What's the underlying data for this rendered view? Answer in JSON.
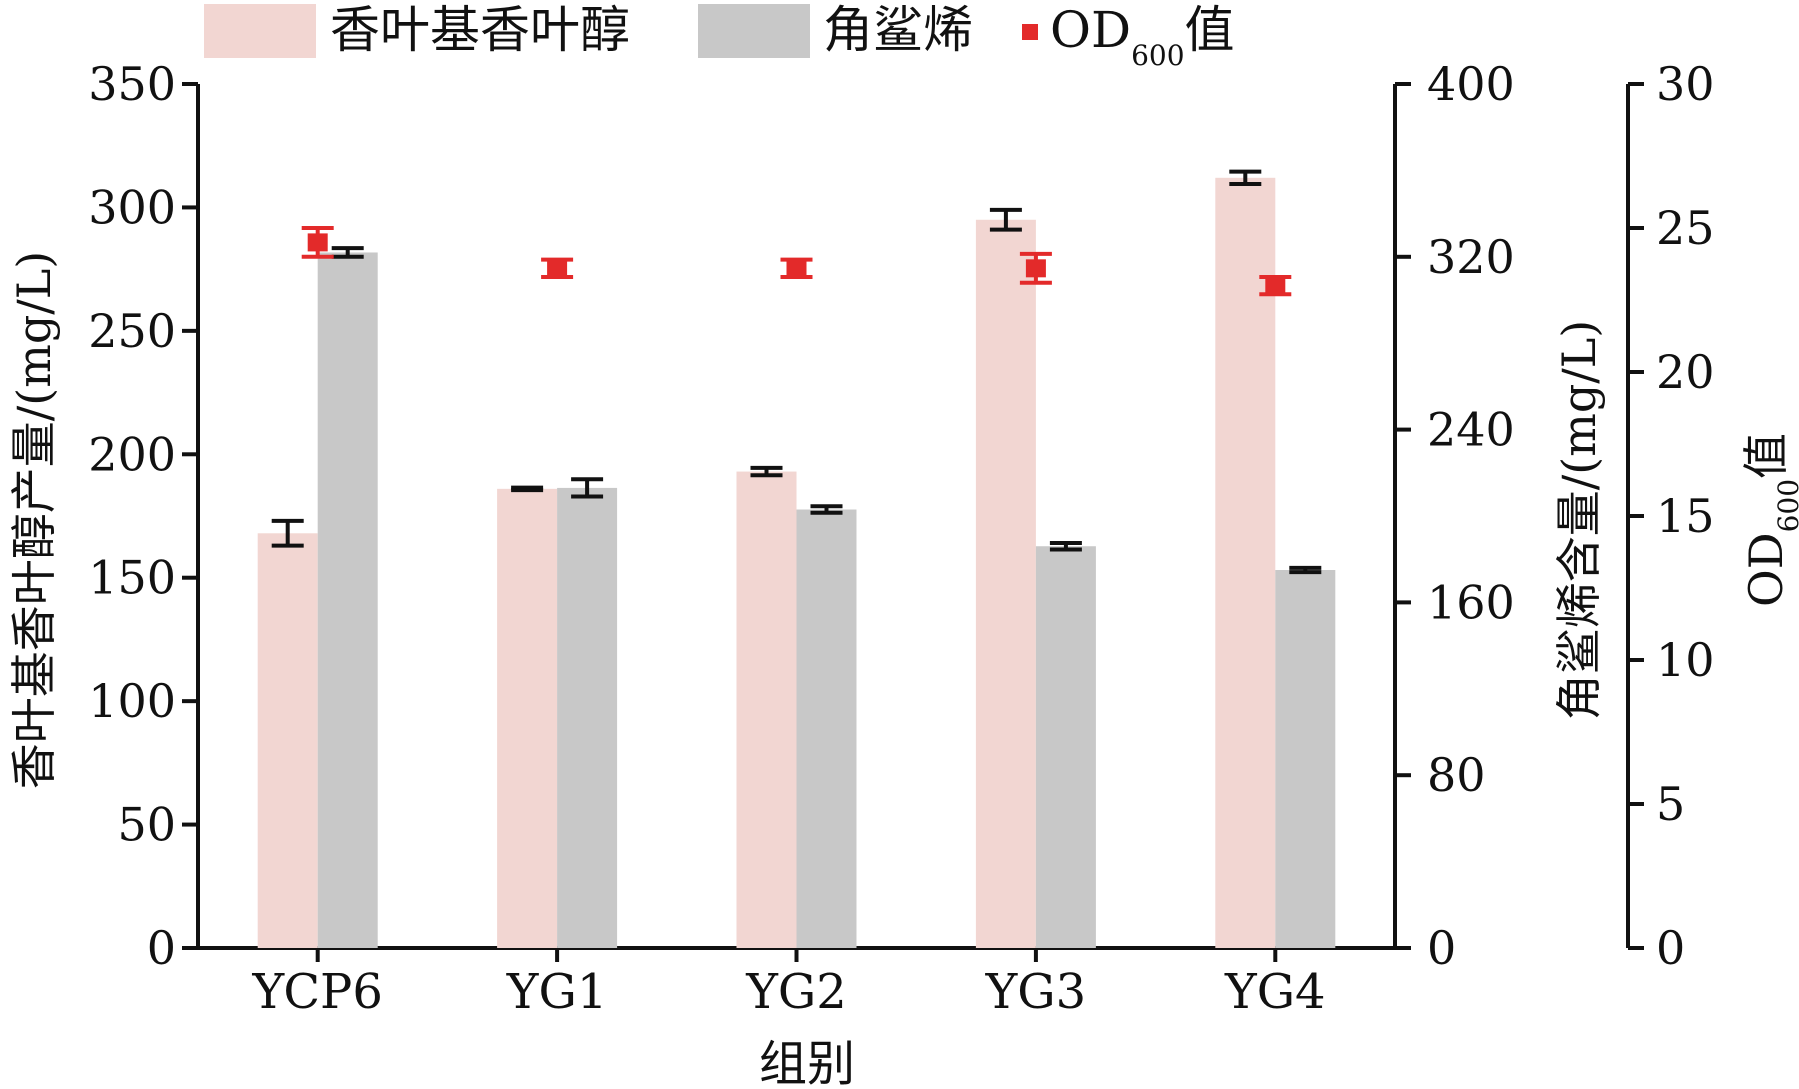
{
  "chart_data": {
    "type": "bar",
    "categories": [
      "YCP6",
      "YG1",
      "YG2",
      "YG3",
      "YG4"
    ],
    "xlabel": "组别",
    "legend": {
      "position": "top",
      "entries": [
        "香叶基香叶醇",
        "角鲨烯",
        "OD",
        "600",
        "值"
      ]
    },
    "axes": {
      "left": {
        "label": "香叶基香叶醇产量/(mg/L)",
        "min": 0,
        "max": 350,
        "ticks": [
          0,
          50,
          100,
          150,
          200,
          250,
          300,
          350
        ]
      },
      "right1": {
        "label": "角鲨烯含量/(mg/L)",
        "min": 0,
        "max": 400,
        "ticks": [
          0,
          80,
          160,
          240,
          320,
          400
        ]
      },
      "right2": {
        "label_main": "OD",
        "label_sub": "600",
        "label_suffix": "值",
        "min": 0,
        "max": 30,
        "ticks": [
          0,
          5,
          10,
          15,
          20,
          25,
          30
        ]
      }
    },
    "series": [
      {
        "name": "香叶基香叶醇",
        "axis": "left",
        "kind": "bar",
        "color": "#f2d6d2",
        "values": [
          168,
          186,
          193,
          295,
          312
        ],
        "errors": [
          5,
          0.5,
          1.5,
          4,
          2.5
        ]
      },
      {
        "name": "角鲨烯",
        "axis": "right1",
        "kind": "bar",
        "color": "#c8c8c8",
        "values": [
          322,
          213,
          203,
          186,
          175
        ],
        "errors": [
          2,
          4,
          1.5,
          1.5,
          1
        ]
      },
      {
        "name": "OD600值",
        "axis": "right2",
        "kind": "point",
        "color": "#e32a2a",
        "values": [
          24.5,
          23.6,
          23.6,
          23.6,
          23.0
        ],
        "errors": [
          0.5,
          0.3,
          0.3,
          0.5,
          0.3
        ]
      }
    ],
    "grid": false
  }
}
